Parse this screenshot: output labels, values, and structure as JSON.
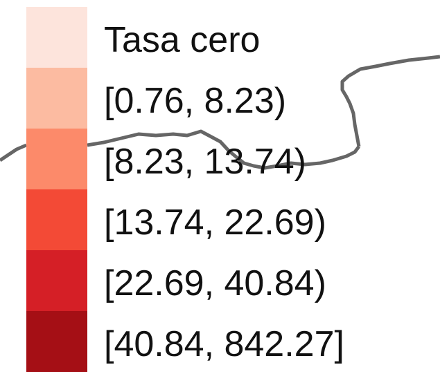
{
  "legend": {
    "items": [
      {
        "label": "Tasa cero",
        "color": "#fde4dc"
      },
      {
        "label": "[0.76, 8.23)",
        "color": "#fcbba1"
      },
      {
        "label": "[8.23, 13.74)",
        "color": "#fc8a6a"
      },
      {
        "label": "[13.74, 22.69)",
        "color": "#f34a36"
      },
      {
        "label": "[22.69, 40.84)",
        "color": "#d51f26"
      },
      {
        "label": "[40.84, 842.27]",
        "color": "#a50f15"
      }
    ]
  },
  "map": {
    "border_color": "#666666"
  }
}
